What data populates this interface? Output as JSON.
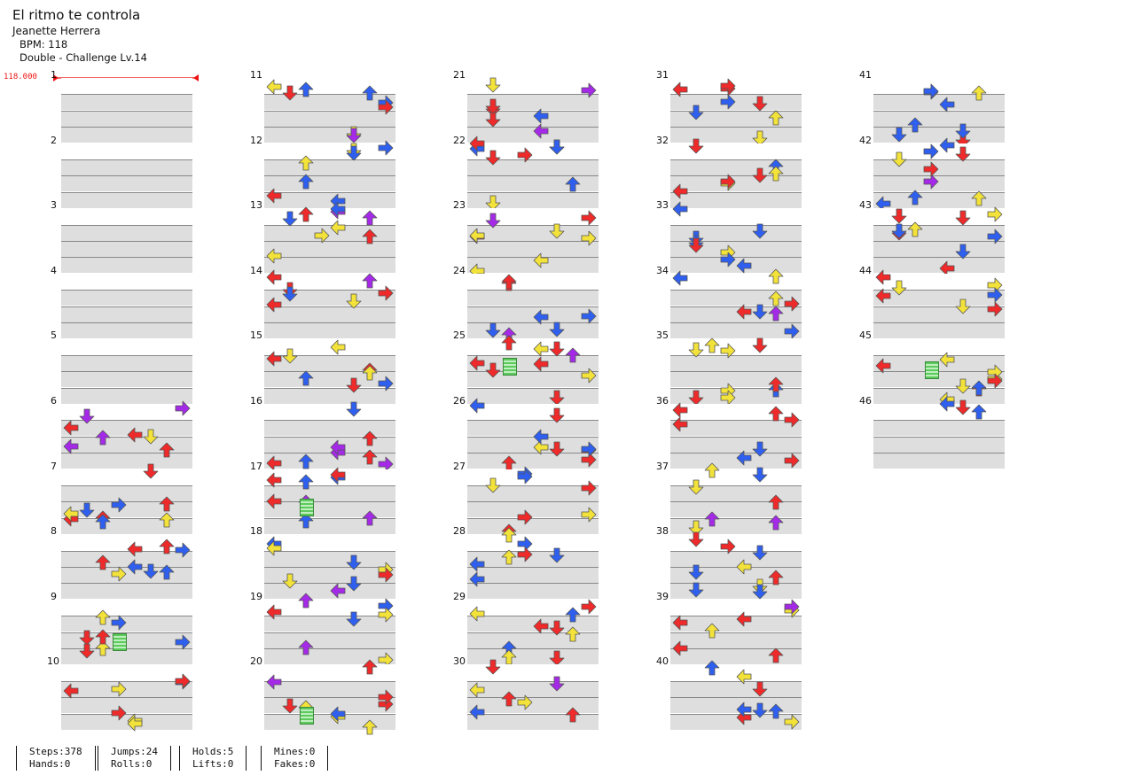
{
  "song": {
    "title": "El ritmo te controla",
    "artist": "Jeanette Herrera",
    "bpm_line": "BPM: 118",
    "difficulty_line": "Double - Challenge Lv.14"
  },
  "bpm_marker": "118.000",
  "measures": [
    "1",
    "2",
    "3",
    "4",
    "5",
    "6",
    "7",
    "8",
    "9",
    "10",
    "11",
    "12",
    "13",
    "14",
    "15",
    "16",
    "17",
    "18",
    "19",
    "20",
    "21",
    "22",
    "23",
    "24",
    "25",
    "26",
    "27",
    "28",
    "29",
    "30",
    "31",
    "32",
    "33",
    "34",
    "35",
    "36",
    "37",
    "38",
    "39",
    "40",
    "41",
    "42",
    "43",
    "44",
    "45",
    "46"
  ],
  "colors": {
    "quarter": "#ee2a2a",
    "eighth": "#2f5fee",
    "sixteenth": "#f2e23a",
    "twelfth": "#a52ae8",
    "twentyfourth": "#f08a25",
    "hold": "#5ccb5c",
    "band": "#dedede"
  },
  "stats": {
    "steps": "Steps:378",
    "hands": "Hands:0",
    "jumps": "Jumps:24",
    "rolls": "Rolls:0",
    "holds": "Holds:5",
    "lifts": "Lifts:0",
    "mines": "Mines:0",
    "fakes": "Fakes:0"
  }
}
